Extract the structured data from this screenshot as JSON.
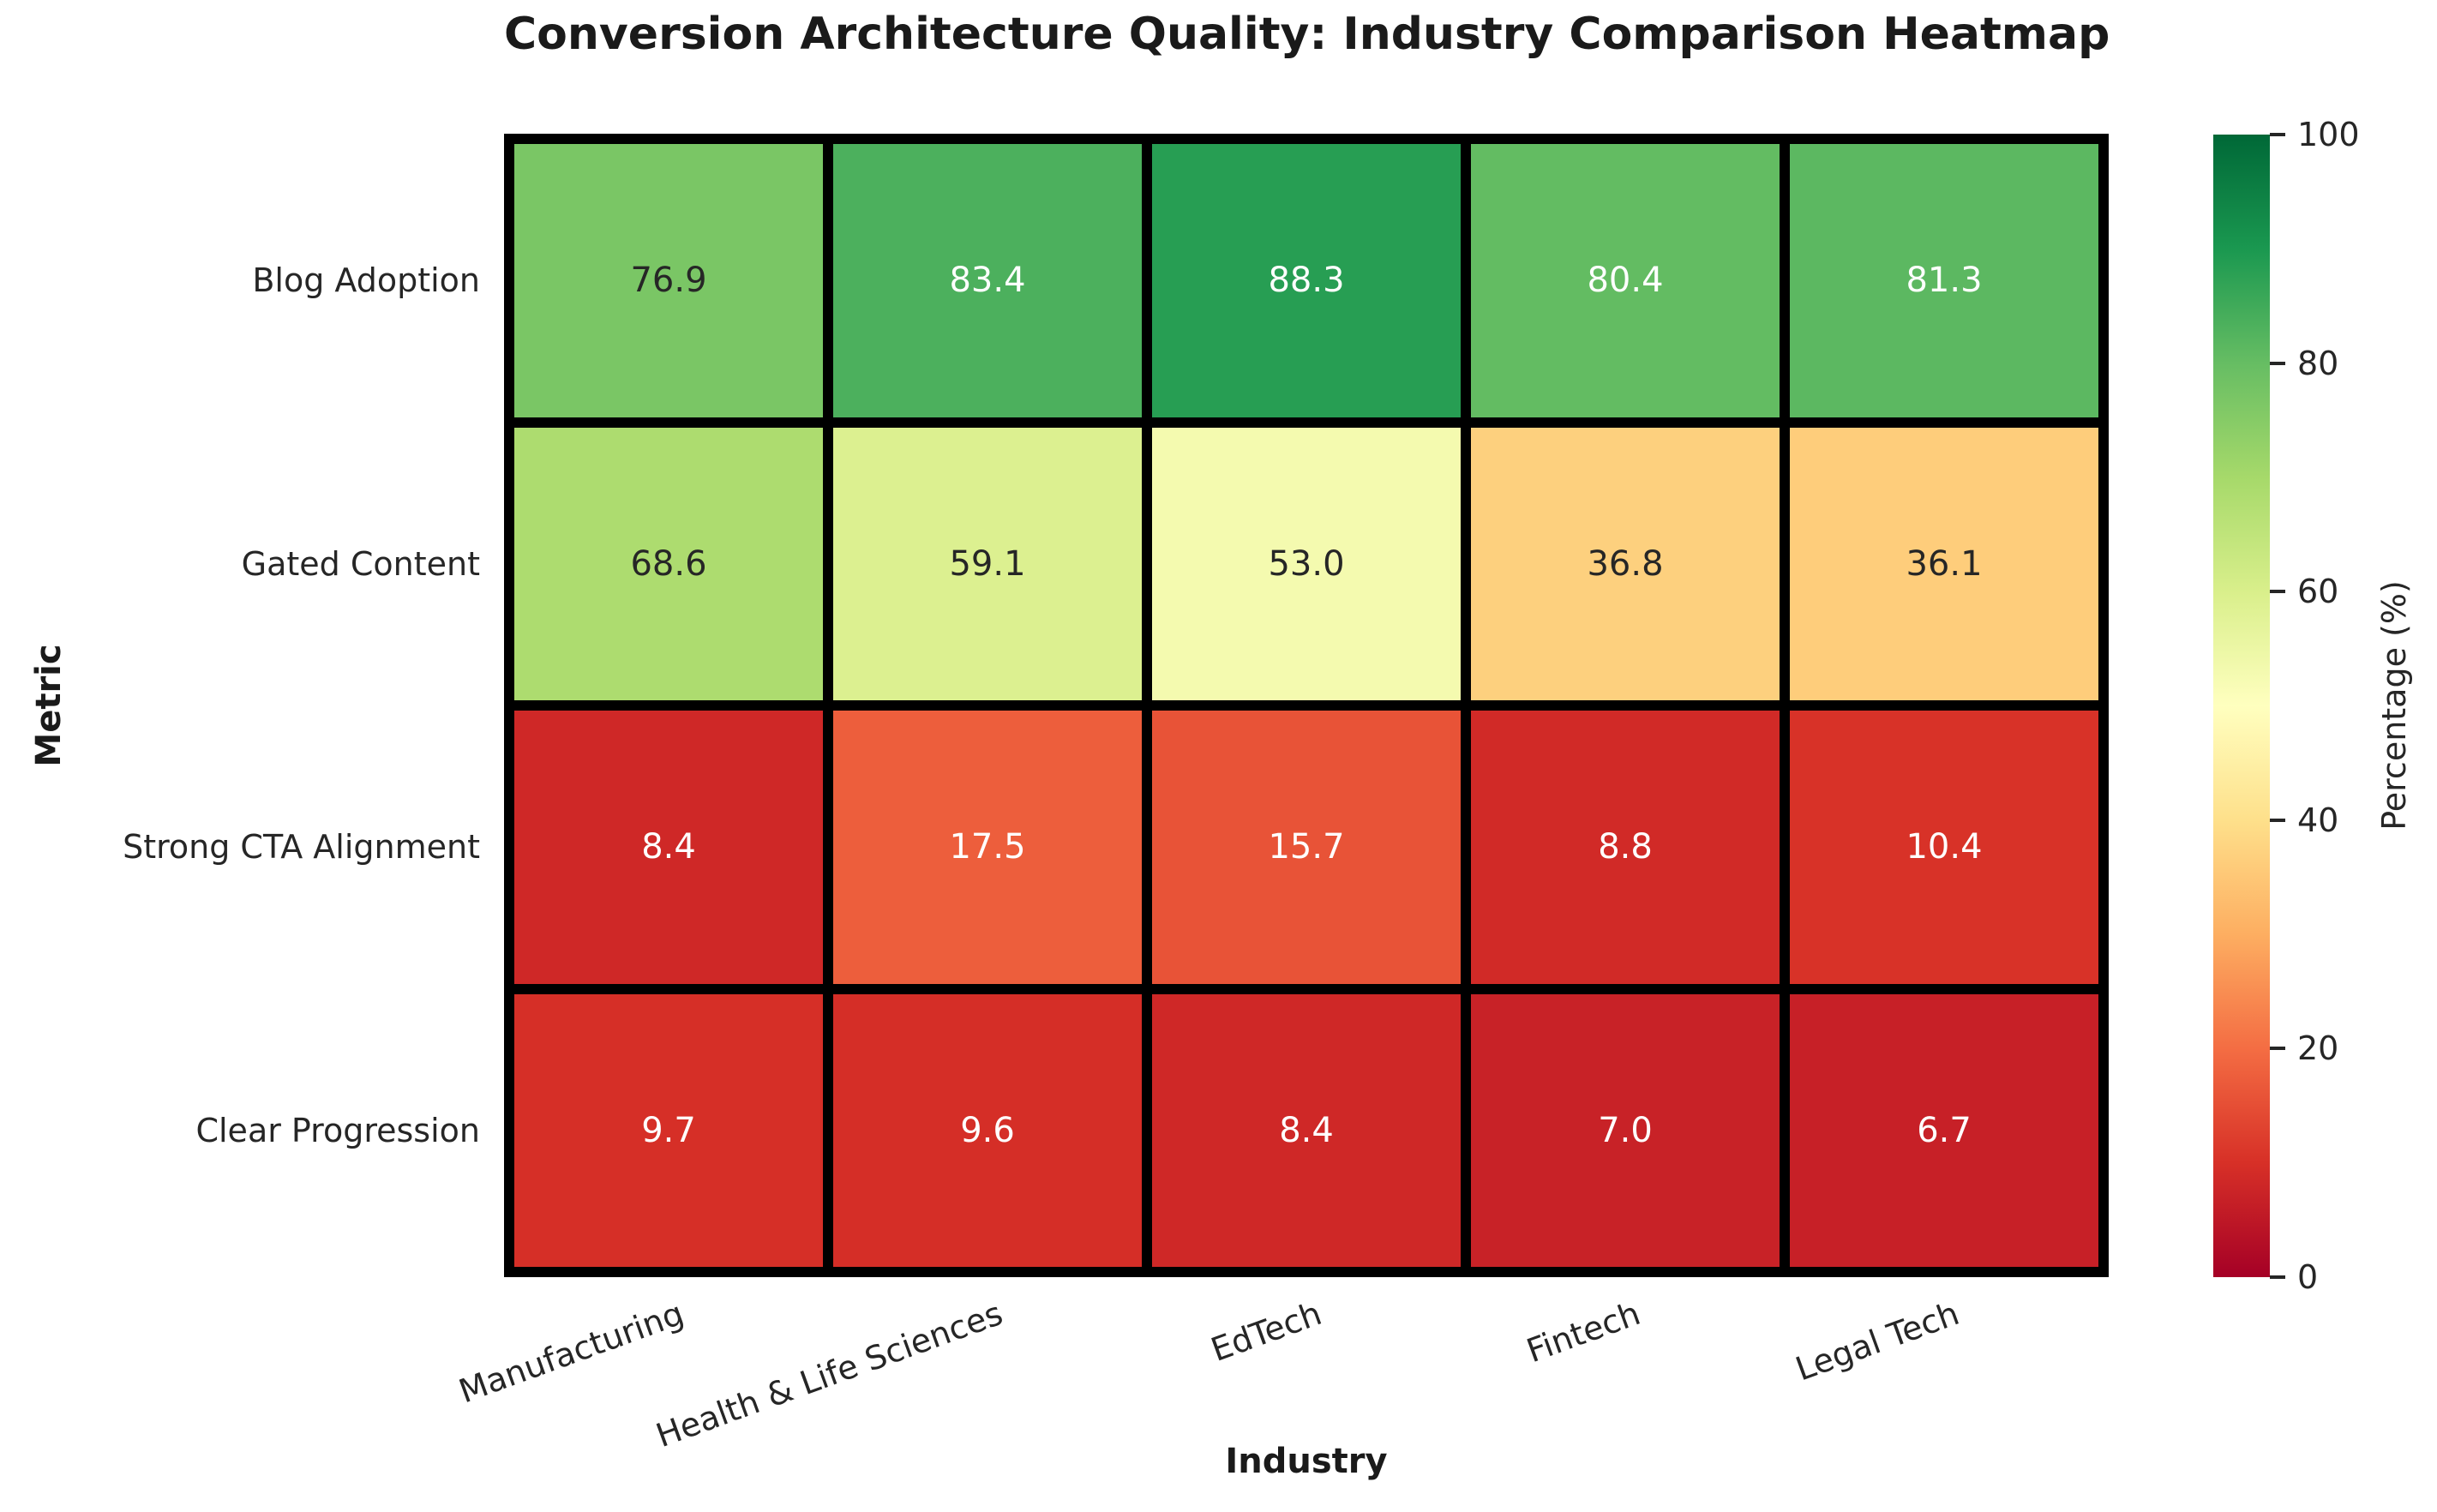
{
  "title": "Conversion Architecture Quality: Industry Comparison Heatmap",
  "chart_data": {
    "type": "heatmap",
    "title": "Conversion Architecture Quality: Industry Comparison Heatmap",
    "xlabel": "Industry",
    "ylabel": "Metric",
    "colormap": "RdYlGn",
    "vmin": 0,
    "vmax": 100,
    "grid_line_color": "#000000",
    "background_color": "#ffffff",
    "columns": [
      "Manufacturing",
      "Health & Life Sciences",
      "EdTech",
      "Fintech",
      "Legal Tech"
    ],
    "rows": [
      "Blog Adoption",
      "Gated Content",
      "Strong CTA Alignment",
      "Clear Progression"
    ],
    "values": [
      [
        76.9,
        83.4,
        88.3,
        80.4,
        81.3
      ],
      [
        68.6,
        59.1,
        53.0,
        36.8,
        36.1
      ],
      [
        8.4,
        17.5,
        15.7,
        8.8,
        10.4
      ],
      [
        9.7,
        9.6,
        8.4,
        7.0,
        6.7
      ]
    ],
    "cell_colors": [
      [
        "#7ac665",
        "#4cb05d",
        "#279e53",
        "#63bc62",
        "#5cb861"
      ],
      [
        "#addc6f",
        "#dcf090",
        "#f4faaf",
        "#fdd07e",
        "#fecd7b"
      ],
      [
        "#cf2827",
        "#ed5e3c",
        "#e85337",
        "#d12a27",
        "#d83228"
      ],
      [
        "#d62f27",
        "#d52e27",
        "#cf2827",
        "#c82227",
        "#c72027"
      ]
    ],
    "text_colors": [
      [
        "#262626",
        "#ffffff",
        "#ffffff",
        "#ffffff",
        "#ffffff"
      ],
      [
        "#262626",
        "#262626",
        "#262626",
        "#262626",
        "#262626"
      ],
      [
        "#ffffff",
        "#ffffff",
        "#ffffff",
        "#ffffff",
        "#ffffff"
      ],
      [
        "#ffffff",
        "#ffffff",
        "#ffffff",
        "#ffffff",
        "#ffffff"
      ]
    ],
    "colorbar": {
      "label": "Percentage (%)",
      "ticks": [
        0,
        20,
        40,
        60,
        80,
        100
      ],
      "min": 0,
      "max": 100,
      "gradient_stops_bottom_to_top": [
        "#a50026",
        "#d73027",
        "#f46d43",
        "#fdae61",
        "#fee08b",
        "#ffffbf",
        "#d9ef8b",
        "#a6d96a",
        "#66bd63",
        "#1a9850",
        "#006837"
      ]
    }
  }
}
